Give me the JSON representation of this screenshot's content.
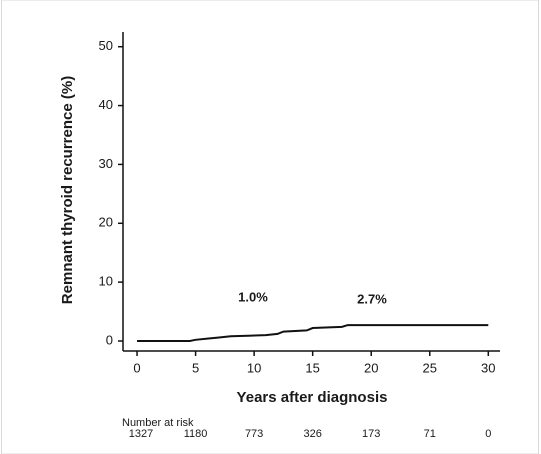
{
  "chart_data": {
    "type": "line",
    "x_label": "Years after diagnosis",
    "y_label": "Remnant thyroid recurrence (%)",
    "x": [
      0,
      4.5,
      5,
      6,
      7,
      8,
      9.5,
      11,
      12,
      12.5,
      14.5,
      15,
      17.5,
      18,
      30
    ],
    "series": [
      {
        "color": "#111111",
        "values": [
          0,
          0,
          0.2,
          0.4,
          0.6,
          0.8,
          0.9,
          1.0,
          1.2,
          1.6,
          1.8,
          2.2,
          2.4,
          2.7,
          2.7
        ]
      }
    ],
    "xlim": [
      -1.2,
      31
    ],
    "ylim": [
      -1.7,
      52.5
    ],
    "xticks": [
      0,
      5,
      10,
      15,
      20,
      25,
      30
    ],
    "yticks": [
      0,
      10,
      20,
      30,
      40,
      50
    ],
    "annotations": [
      "1.0%",
      "2.7%"
    ],
    "risk_table": {
      "label": "Number at risk",
      "values": [
        1327,
        1180,
        773,
        326,
        173,
        71,
        0
      ]
    }
  }
}
